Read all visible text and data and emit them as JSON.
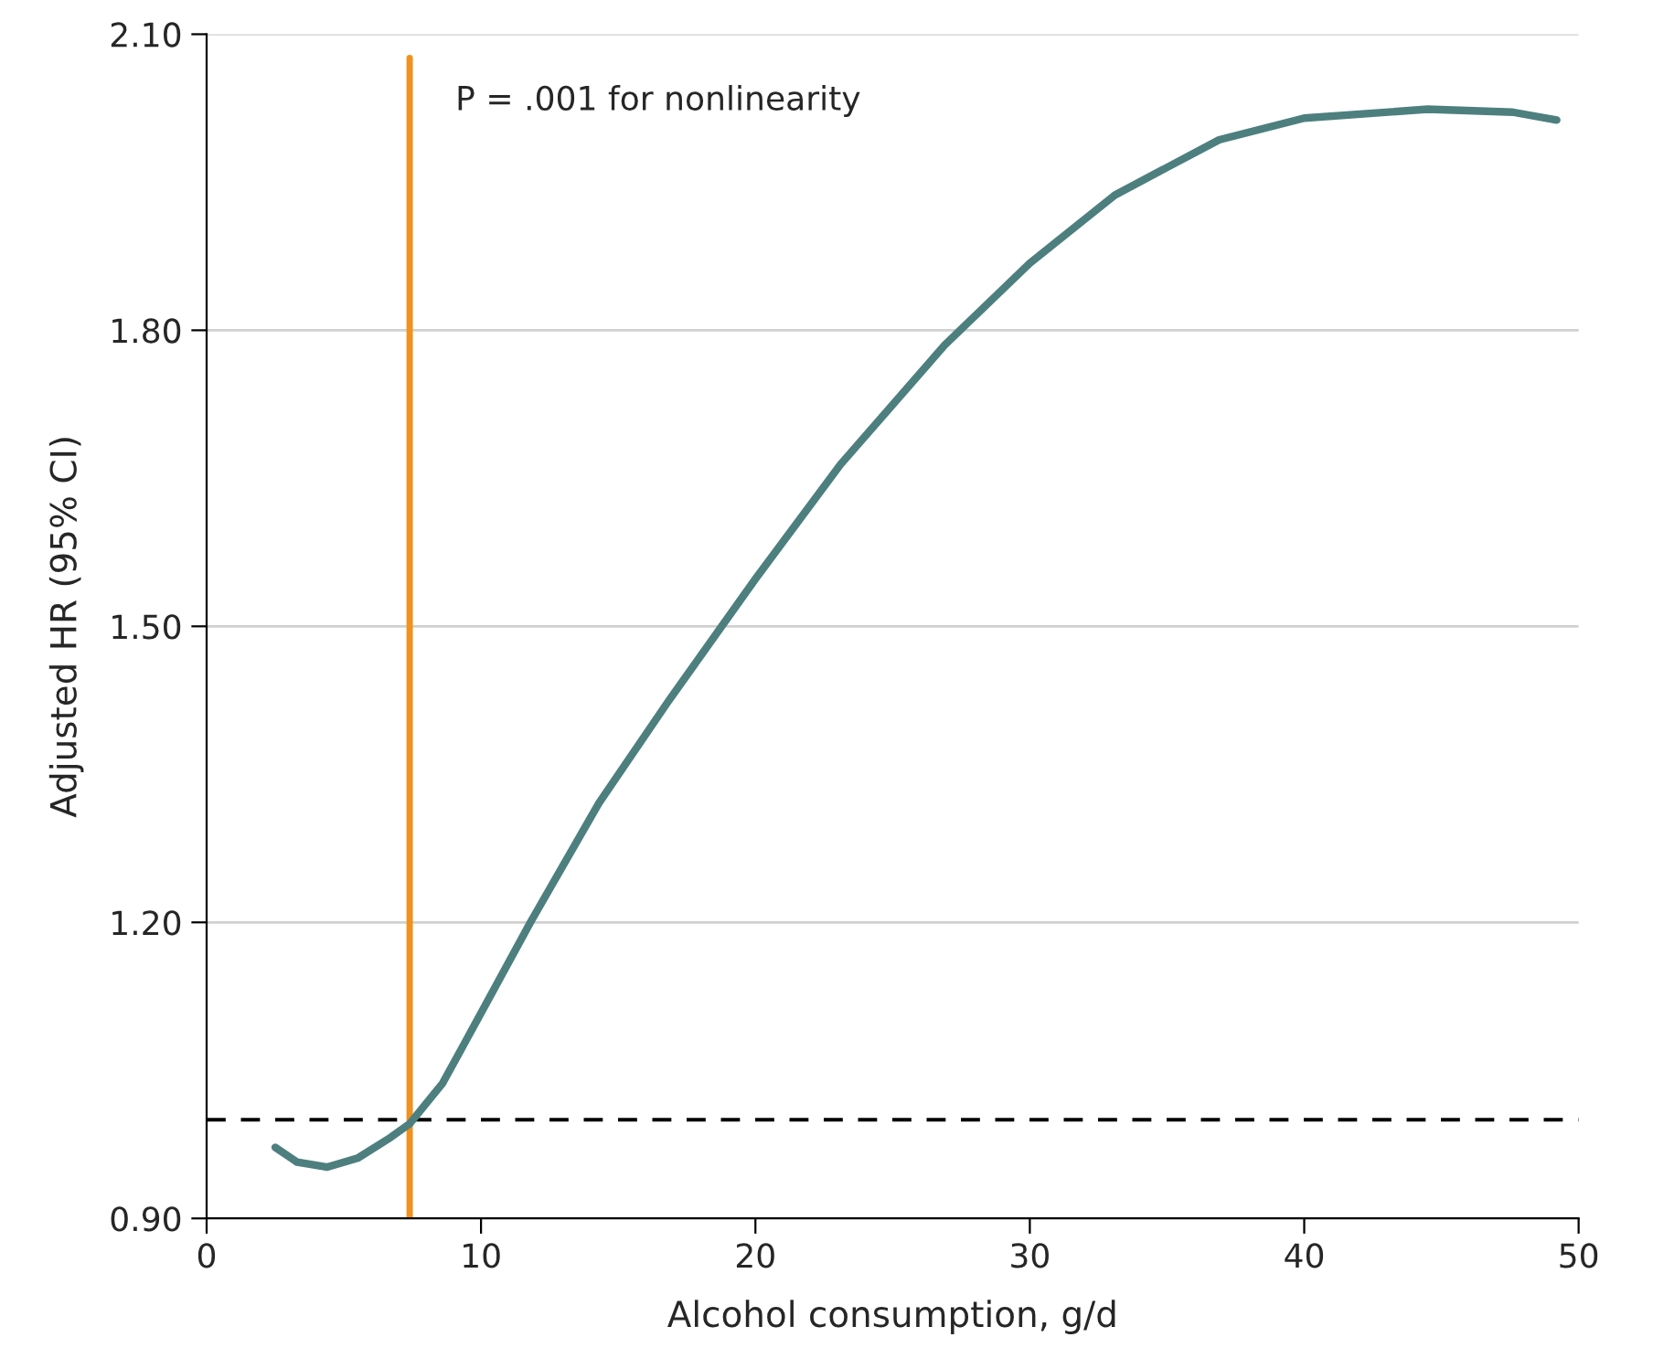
{
  "chart_data": {
    "type": "line",
    "xlabel": "Alcohol consumption, g/d",
    "ylabel": "Adjusted HR (95% CI)",
    "series": [
      {
        "color": "#4d7f7f",
        "x": [
          2.5,
          3.3,
          4.4,
          5.5,
          6.7,
          7.4,
          8.6,
          10,
          11.8,
          14.3,
          16.8,
          20,
          23.1,
          26.9,
          30,
          33.1,
          36.9,
          40,
          44.5,
          47.6,
          49.2
        ],
        "values": [
          0.972,
          0.957,
          0.952,
          0.961,
          0.982,
          0.996,
          1.037,
          1.108,
          1.2,
          1.321,
          1.423,
          1.548,
          1.664,
          1.785,
          1.868,
          1.937,
          1.993,
          2.015,
          2.024,
          2.021,
          2.013
        ]
      }
    ],
    "xlim": [
      0,
      50
    ],
    "xticks": [
      0,
      10,
      20,
      30,
      40,
      50
    ],
    "ylim": [
      0.9,
      2.1
    ],
    "yticks": [
      {
        "value": 0.9,
        "label": "0.90"
      },
      {
        "value": 1.2,
        "label": "1.20"
      },
      {
        "value": 1.5,
        "label": "1.50"
      },
      {
        "value": 1.8,
        "label": "1.80"
      },
      {
        "value": 2.1,
        "label": "2.10"
      }
    ],
    "ref_lines": [
      {
        "axis": "y",
        "value": 1.0,
        "color": "#000000",
        "line_style": "dashed"
      },
      {
        "axis": "x",
        "value": 7.4,
        "color": "#f0921e",
        "line_style": "solid",
        "label": "P = .001 for nonlinearity"
      }
    ],
    "grid": "y",
    "line_style": "solid",
    "marker": "none"
  }
}
